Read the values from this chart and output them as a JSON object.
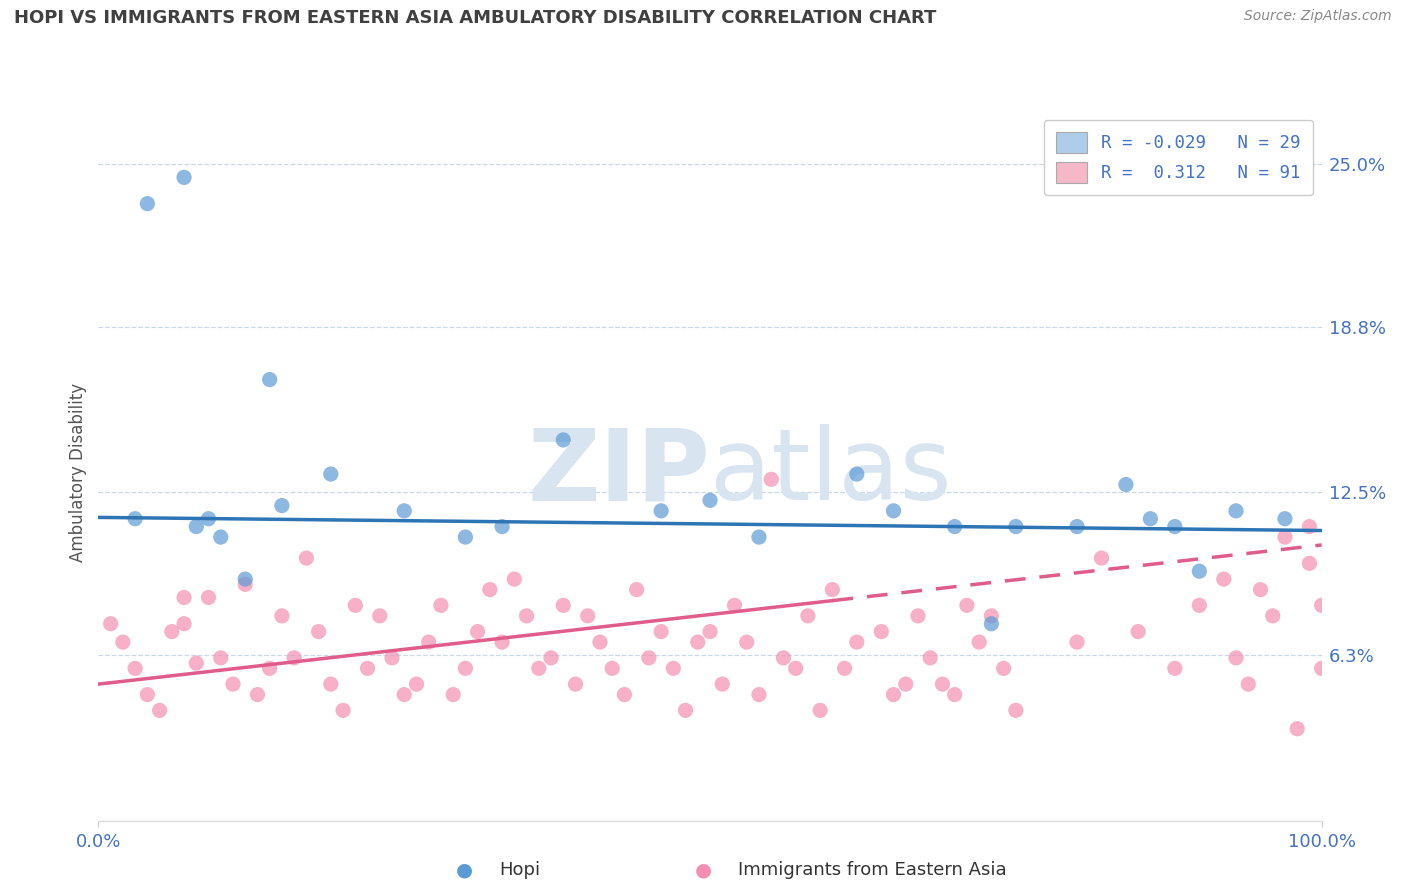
{
  "title": "HOPI VS IMMIGRANTS FROM EASTERN ASIA AMBULATORY DISABILITY CORRELATION CHART",
  "source_text": "Source: ZipAtlas.com",
  "ylabel": "Ambulatory Disability",
  "xlim": [
    0,
    100
  ],
  "ylim_bottom": 0,
  "ylim_top": 26.5,
  "ytick_labels": [
    "6.3%",
    "12.5%",
    "18.8%",
    "25.0%"
  ],
  "ytick_values": [
    6.3,
    12.5,
    18.8,
    25.0
  ],
  "hopi_color": "#5b9bd5",
  "immigrant_color": "#f48fb1",
  "hopi_line_color": "#2e75b6",
  "immigrant_line_color": "#e05c8a",
  "legend_hopi_patch": "#aecde8",
  "legend_immig_patch": "#f4b8c8",
  "hopi_R": -0.029,
  "hopi_N": 29,
  "immigrant_R": 0.312,
  "immigrant_N": 91,
  "hopi_scatter_x": [
    3,
    4,
    7,
    8,
    9,
    10,
    12,
    14,
    15,
    19,
    25,
    30,
    33,
    38,
    46,
    50,
    54,
    62,
    65,
    70,
    73,
    75,
    80,
    84,
    86,
    88,
    90,
    93,
    97
  ],
  "hopi_scatter_y": [
    11.5,
    23.5,
    24.5,
    11.2,
    11.5,
    10.8,
    9.2,
    16.8,
    12.0,
    13.2,
    11.8,
    10.8,
    11.2,
    14.5,
    11.8,
    12.2,
    10.8,
    13.2,
    11.8,
    11.2,
    7.5,
    11.2,
    11.2,
    12.8,
    11.5,
    11.2,
    9.5,
    11.8,
    11.5
  ],
  "immigrant_scatter_x": [
    1,
    2,
    3,
    4,
    5,
    6,
    7,
    7,
    8,
    9,
    10,
    11,
    12,
    13,
    14,
    15,
    16,
    17,
    18,
    19,
    20,
    21,
    22,
    23,
    24,
    25,
    26,
    27,
    28,
    29,
    30,
    31,
    32,
    33,
    34,
    35,
    36,
    37,
    38,
    39,
    40,
    41,
    42,
    43,
    44,
    45,
    46,
    47,
    48,
    49,
    50,
    51,
    52,
    53,
    54,
    55,
    56,
    57,
    58,
    59,
    60,
    61,
    62,
    64,
    65,
    66,
    67,
    68,
    69,
    70,
    71,
    72,
    73,
    74,
    75,
    80,
    82,
    85,
    88,
    90,
    92,
    93,
    94,
    95,
    96,
    97,
    98,
    99,
    99,
    100,
    100
  ],
  "immigrant_scatter_y": [
    7.5,
    6.8,
    5.8,
    4.8,
    4.2,
    7.2,
    7.5,
    8.5,
    6.0,
    8.5,
    6.2,
    5.2,
    9.0,
    4.8,
    5.8,
    7.8,
    6.2,
    10.0,
    7.2,
    5.2,
    4.2,
    8.2,
    5.8,
    7.8,
    6.2,
    4.8,
    5.2,
    6.8,
    8.2,
    4.8,
    5.8,
    7.2,
    8.8,
    6.8,
    9.2,
    7.8,
    5.8,
    6.2,
    8.2,
    5.2,
    7.8,
    6.8,
    5.8,
    4.8,
    8.8,
    6.2,
    7.2,
    5.8,
    4.2,
    6.8,
    7.2,
    5.2,
    8.2,
    6.8,
    4.8,
    13.0,
    6.2,
    5.8,
    7.8,
    4.2,
    8.8,
    5.8,
    6.8,
    7.2,
    4.8,
    5.2,
    7.8,
    6.2,
    5.2,
    4.8,
    8.2,
    6.8,
    7.8,
    5.8,
    4.2,
    6.8,
    10.0,
    7.2,
    5.8,
    8.2,
    9.2,
    6.2,
    5.2,
    8.8,
    7.8,
    10.8,
    3.5,
    11.2,
    9.8,
    5.8,
    8.2
  ],
  "hopi_line_x0": 0,
  "hopi_line_x1": 100,
  "hopi_line_y0": 11.55,
  "hopi_line_y1": 11.05,
  "immig_line_x0": 0,
  "immig_line_x1": 100,
  "immig_line_y0": 5.2,
  "immig_line_y1": 10.5,
  "immig_dash_start_x": 60,
  "background_color": "#ffffff",
  "grid_color": "#c5d5e8",
  "axis_label_color": "#4472c4",
  "title_color": "#404040",
  "watermark_text": "ZIPatlas",
  "watermark_color": "#d8e4f0"
}
